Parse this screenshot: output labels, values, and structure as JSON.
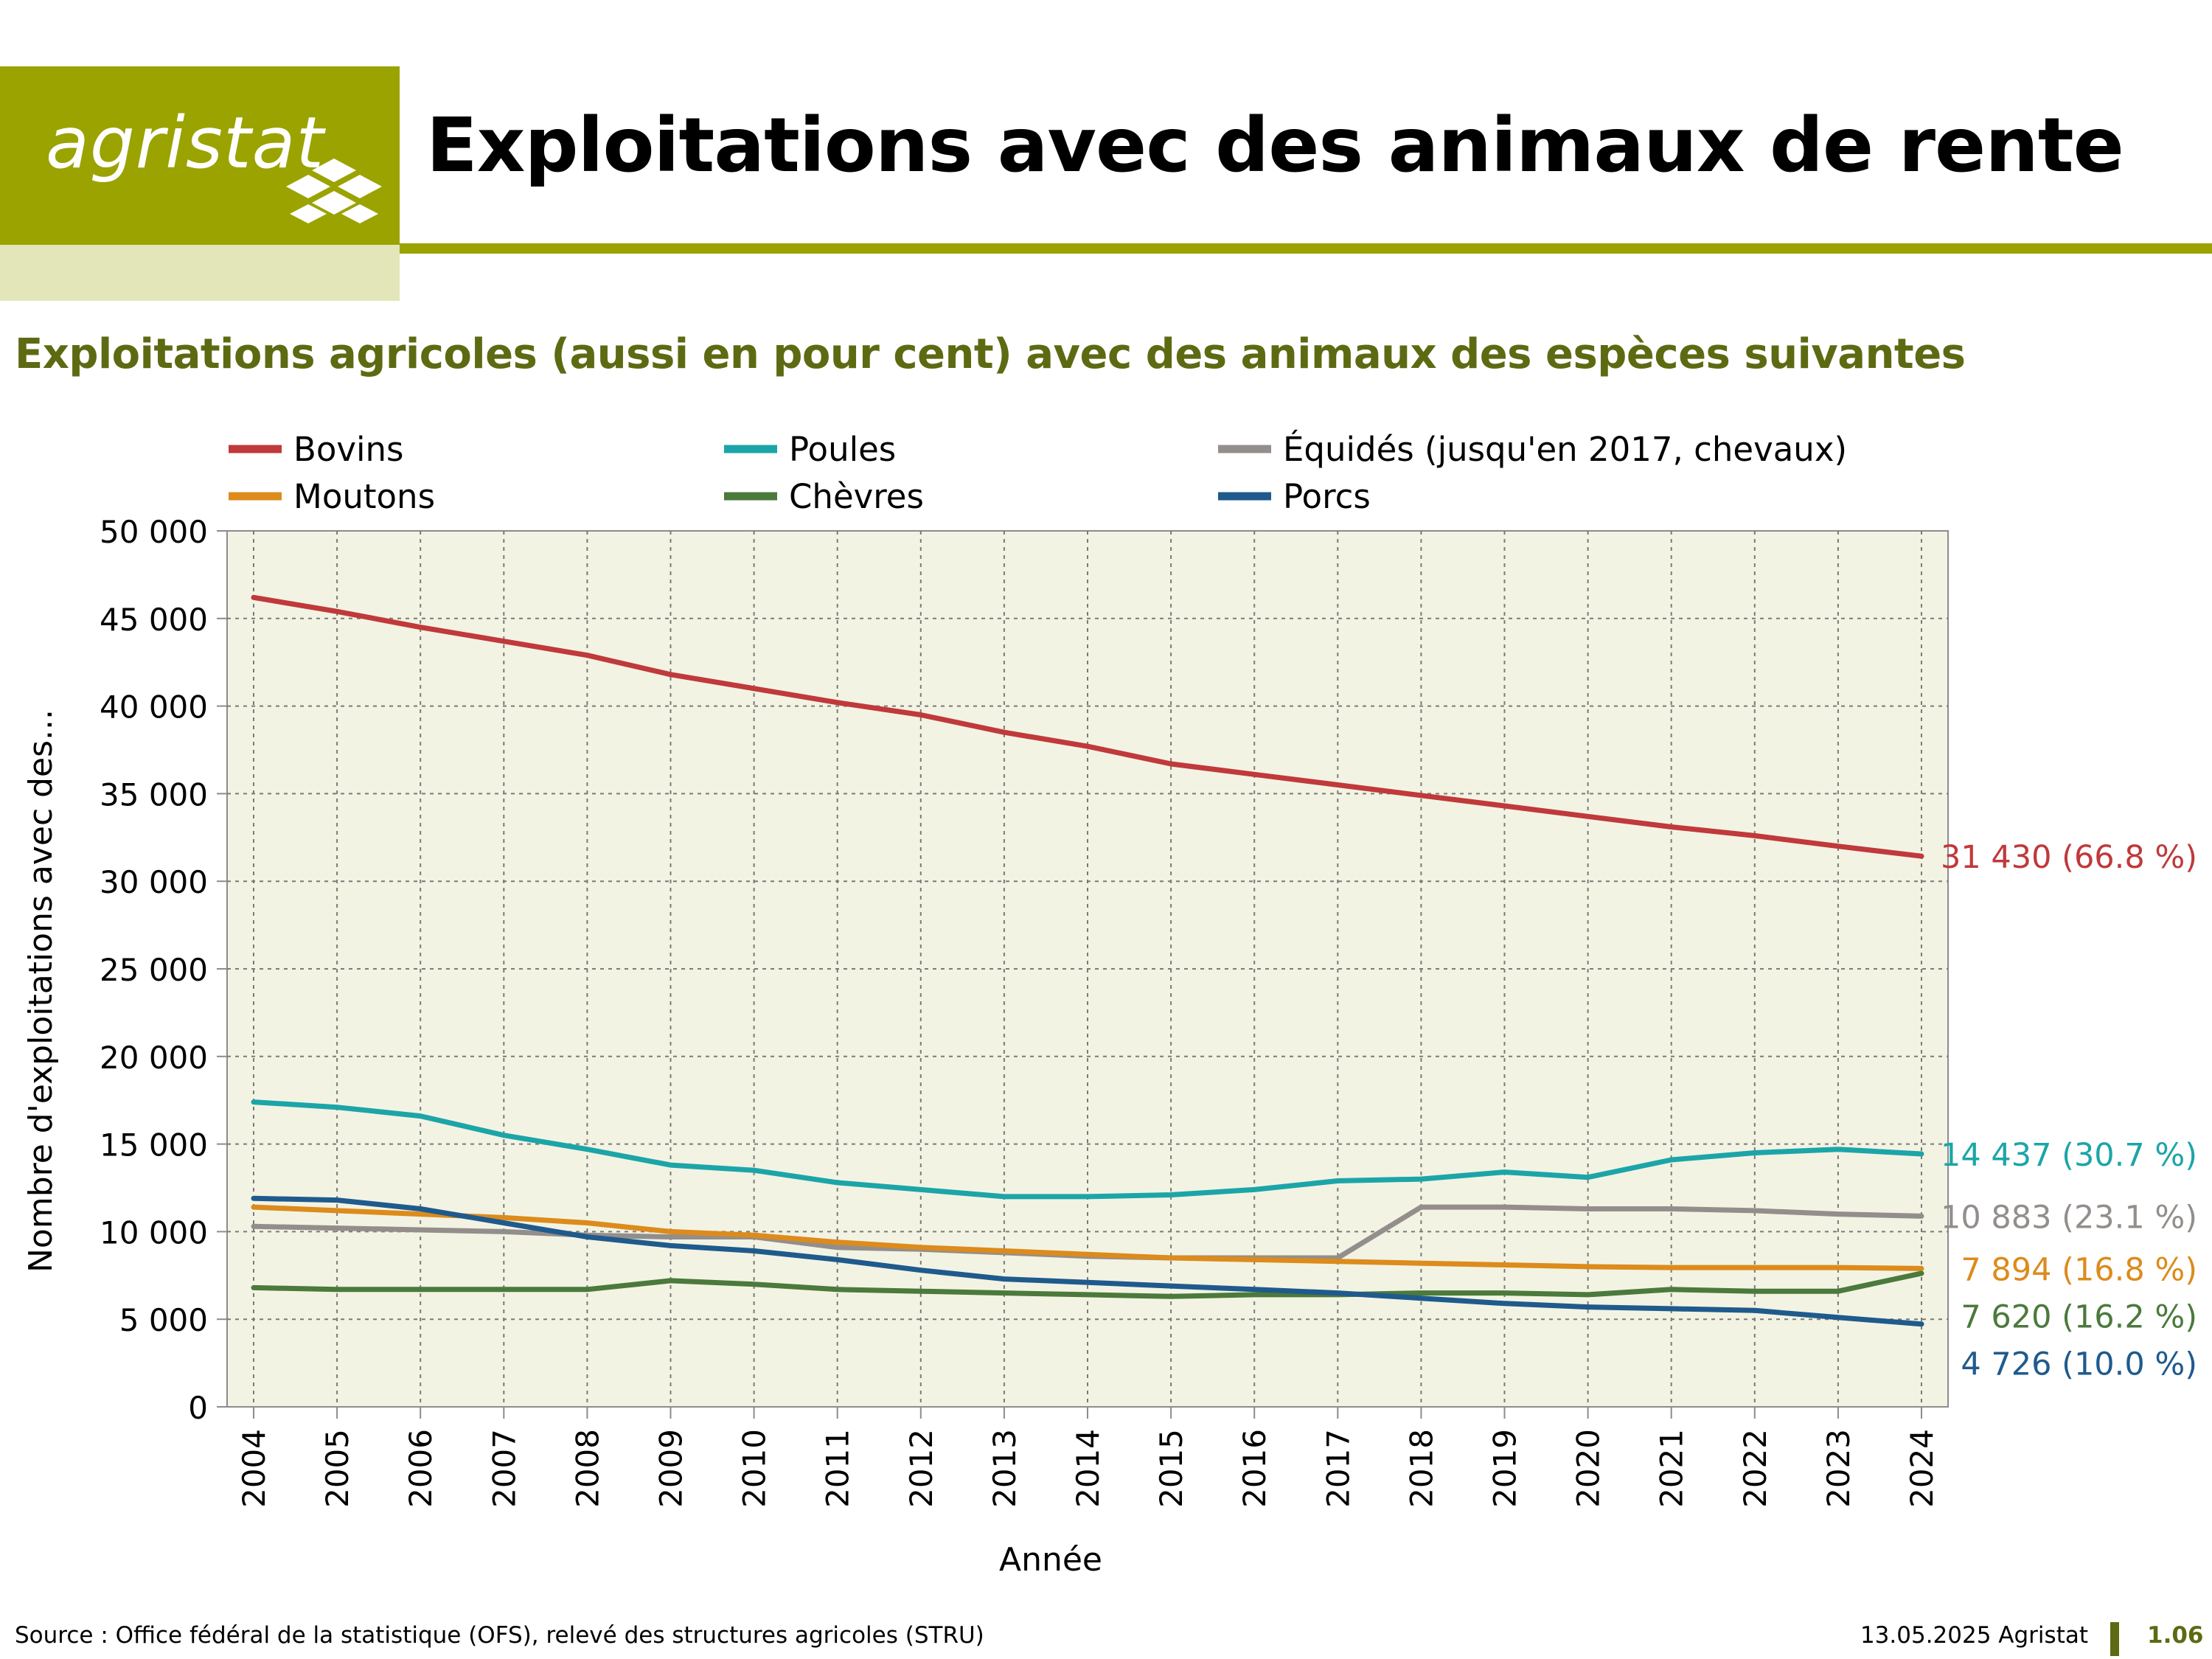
{
  "header": {
    "logo_text": "agristat",
    "title": "Exploitations avec des animaux de rente"
  },
  "subtitle": "Exploitations agricoles (aussi en pour cent) avec des animaux des espèces suivantes",
  "footer": {
    "source": "Source : Office fédéral de la statistique (OFS), relevé des structures agricoles (STRU)",
    "date": "13.05.2025 Agristat",
    "page": "1.06"
  },
  "colors": {
    "brand": "#9aa300",
    "brand_pale": "#e3e6b8",
    "subtitle": "#5e6a12",
    "plot_bg": "#f3f3e3"
  },
  "chart_data": {
    "type": "line",
    "xlabel": "Année",
    "ylabel": "Nombre d'exploitations avec des...",
    "ylim": [
      0,
      50000
    ],
    "yticks": [
      0,
      5000,
      10000,
      15000,
      20000,
      25000,
      30000,
      35000,
      40000,
      45000,
      50000
    ],
    "ytick_labels": [
      "0",
      "5 000",
      "10 000",
      "15 000",
      "20 000",
      "25 000",
      "30 000",
      "35 000",
      "40 000",
      "45 000",
      "50 000"
    ],
    "x": [
      2004,
      2005,
      2006,
      2007,
      2008,
      2009,
      2010,
      2011,
      2012,
      2013,
      2014,
      2015,
      2016,
      2017,
      2018,
      2019,
      2020,
      2021,
      2022,
      2023,
      2024
    ],
    "grid": true,
    "legend_position": "top",
    "series": [
      {
        "name": "Bovins",
        "color": "#c0393b",
        "values": [
          46200,
          45400,
          44500,
          43700,
          42900,
          41800,
          41000,
          40200,
          39500,
          38500,
          37700,
          36700,
          36100,
          35500,
          34900,
          34300,
          33700,
          33100,
          32600,
          32000,
          31430
        ],
        "end_label": "31 430 (66.8 %)"
      },
      {
        "name": "Poules",
        "color": "#1ca5a8",
        "values": [
          17400,
          17100,
          16600,
          15500,
          14700,
          13800,
          13500,
          12800,
          12400,
          12000,
          12000,
          12100,
          12400,
          12900,
          13000,
          13400,
          13100,
          14100,
          14500,
          14700,
          14437
        ],
        "end_label": "14 437 (30.7 %)"
      },
      {
        "name": "Équidés (jusqu'en 2017, chevaux)",
        "color": "#938e8c",
        "values": [
          10300,
          10200,
          10100,
          10000,
          9800,
          9700,
          9700,
          9100,
          9000,
          8800,
          8600,
          8500,
          8500,
          8500,
          11400,
          11400,
          11300,
          11300,
          11200,
          11000,
          10883
        ],
        "end_label": "10 883 (23.1 %)"
      },
      {
        "name": "Moutons",
        "color": "#dc8b1c",
        "values": [
          11400,
          11200,
          11000,
          10800,
          10500,
          10000,
          9800,
          9400,
          9100,
          8900,
          8700,
          8500,
          8400,
          8300,
          8200,
          8100,
          8000,
          7950,
          7950,
          7950,
          7894
        ],
        "end_label": "7 894 (16.8 %)"
      },
      {
        "name": "Chèvres",
        "color": "#4b7a3c",
        "values": [
          6800,
          6700,
          6700,
          6700,
          6700,
          7200,
          7000,
          6700,
          6600,
          6500,
          6400,
          6300,
          6400,
          6400,
          6500,
          6500,
          6400,
          6700,
          6600,
          6600,
          7620
        ],
        "end_label": "7 620 (16.2 %)"
      },
      {
        "name": "Porcs",
        "color": "#1f5a8d",
        "values": [
          11900,
          11800,
          11300,
          10500,
          9700,
          9200,
          8900,
          8400,
          7800,
          7300,
          7100,
          6900,
          6700,
          6500,
          6200,
          5900,
          5700,
          5600,
          5500,
          5100,
          4726
        ],
        "end_label": "4 726 (10.0 %)"
      }
    ]
  }
}
